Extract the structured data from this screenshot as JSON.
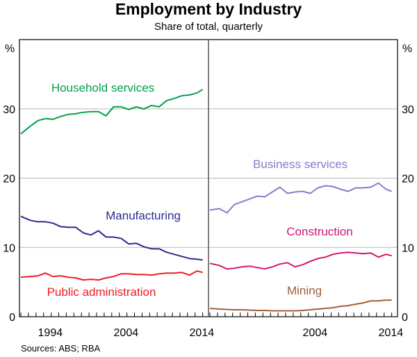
{
  "title": "Employment by Industry",
  "subtitle": "Share of total, quarterly",
  "source": "Sources: ABS; RBA",
  "chart_data": [
    {
      "type": "line",
      "panel": "left",
      "ylabel": "%",
      "ylim": [
        0,
        40
      ],
      "yticks": [
        0,
        10,
        20,
        30
      ],
      "xlim": [
        1989.5,
        2014.5
      ],
      "xticks": [
        1994,
        2004,
        2014
      ],
      "grid": true,
      "x": [
        1989.75,
        1991,
        1992,
        1993,
        1994,
        1995,
        1996,
        1997,
        1998,
        1999,
        2000,
        2001,
        2002,
        2003,
        2004,
        2005,
        2006,
        2007,
        2008,
        2009,
        2010,
        2011,
        2012,
        2013,
        2013.75
      ],
      "series": [
        {
          "name": "Household services",
          "color": "#00a04a",
          "values": [
            26.4,
            27.5,
            28.3,
            28.6,
            28.5,
            28.9,
            29.2,
            29.3,
            29.5,
            29.6,
            29.6,
            29.0,
            30.3,
            30.3,
            29.9,
            30.3,
            30.0,
            30.5,
            30.3,
            31.2,
            31.5,
            31.9,
            32.0,
            32.3,
            32.8
          ]
        },
        {
          "name": "Manufacturing",
          "color": "#2a2a8f",
          "values": [
            14.5,
            13.9,
            13.7,
            13.7,
            13.5,
            13.0,
            12.9,
            12.9,
            12.1,
            11.8,
            12.4,
            11.5,
            11.5,
            11.3,
            10.5,
            10.6,
            10.1,
            9.8,
            9.8,
            9.3,
            9.0,
            8.7,
            8.4,
            8.3,
            8.2
          ]
        },
        {
          "name": "Public administration",
          "color": "#ee1c25",
          "values": [
            5.7,
            5.8,
            5.9,
            6.3,
            5.8,
            5.9,
            5.7,
            5.6,
            5.3,
            5.4,
            5.3,
            5.6,
            5.8,
            6.2,
            6.2,
            6.1,
            6.1,
            6.0,
            6.2,
            6.3,
            6.3,
            6.4,
            6.0,
            6.6,
            6.4
          ]
        }
      ]
    },
    {
      "type": "line",
      "panel": "right",
      "ylabel": "%",
      "ylim": [
        0,
        40
      ],
      "yticks": [
        0,
        10,
        20,
        30
      ],
      "xlim": [
        1989.5,
        2014.5
      ],
      "xticks": [
        2004,
        2014
      ],
      "grid": true,
      "x": [
        1989.75,
        1991,
        1992,
        1993,
        1994,
        1995,
        1996,
        1997,
        1998,
        1999,
        2000,
        2001,
        2002,
        2003,
        2004,
        2005,
        2006,
        2007,
        2008,
        2009,
        2010,
        2011,
        2012,
        2013,
        2013.75
      ],
      "series": [
        {
          "name": "Business services",
          "color": "#8080c8",
          "values": [
            15.4,
            15.6,
            15.0,
            16.2,
            16.6,
            17.0,
            17.4,
            17.3,
            18.0,
            18.7,
            17.8,
            18.0,
            18.1,
            17.8,
            18.6,
            18.9,
            18.8,
            18.4,
            18.1,
            18.6,
            18.6,
            18.7,
            19.3,
            18.4,
            18.1
          ]
        },
        {
          "name": "Construction",
          "color": "#d4146e",
          "values": [
            7.7,
            7.4,
            6.9,
            7.0,
            7.2,
            7.3,
            7.1,
            6.9,
            7.2,
            7.6,
            7.8,
            7.2,
            7.5,
            8.0,
            8.4,
            8.6,
            9.0,
            9.2,
            9.3,
            9.2,
            9.1,
            9.2,
            8.6,
            9.0,
            8.8
          ]
        },
        {
          "name": "Mining",
          "color": "#a0603a",
          "values": [
            1.2,
            1.1,
            1.05,
            1.0,
            1.0,
            0.95,
            0.9,
            0.9,
            0.85,
            0.85,
            0.85,
            0.85,
            0.9,
            1.0,
            1.1,
            1.2,
            1.3,
            1.5,
            1.6,
            1.8,
            2.0,
            2.3,
            2.3,
            2.4,
            2.4
          ]
        }
      ]
    }
  ]
}
